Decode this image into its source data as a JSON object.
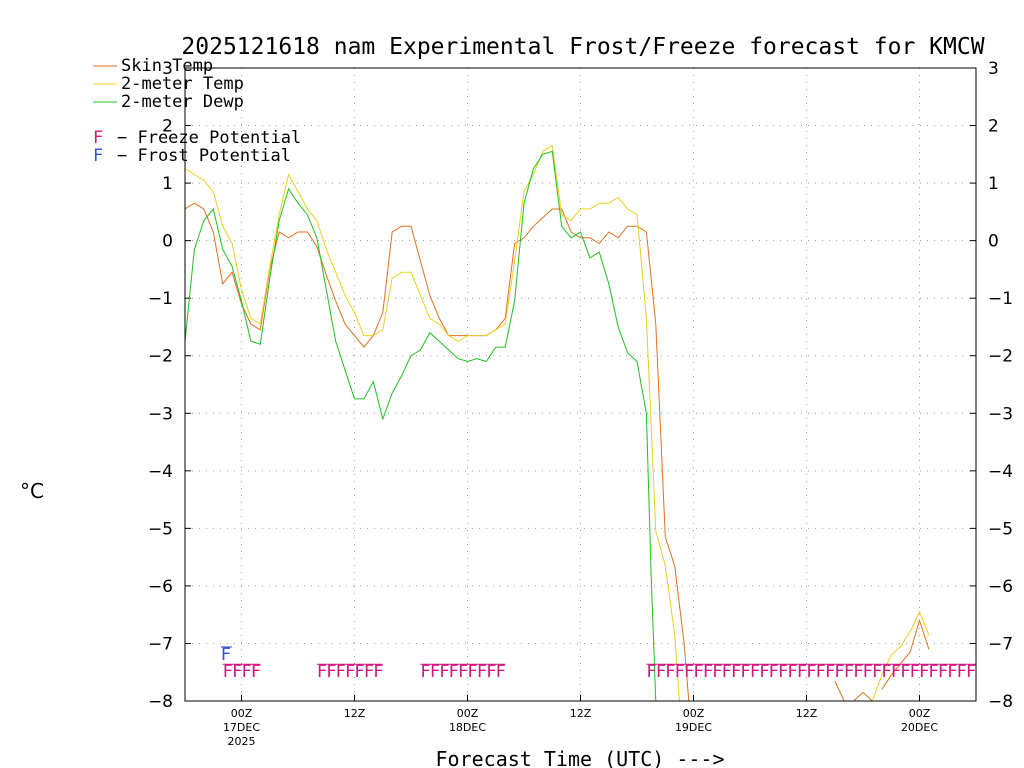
{
  "chart_data": {
    "type": "line",
    "title": "2025121618 nam Experimental Frost/Freeze forecast for KMCW",
    "xlabel": "Forecast Time (UTC) --->",
    "ylabel": "°C",
    "ylim": [
      -8,
      3
    ],
    "yticks": [
      3,
      2,
      1,
      0,
      -1,
      -2,
      -3,
      -4,
      -5,
      -6,
      -7,
      -8
    ],
    "yticklabels": [
      "3",
      "2",
      "1",
      "0",
      "−1",
      "−2",
      "−3",
      "−4",
      "−5",
      "−6",
      "−7",
      "−8"
    ],
    "xlim_hours": [
      0,
      84
    ],
    "xticks": [
      {
        "hour": 6,
        "label": "00Z",
        "sub1": "17DEC",
        "sub2": "2025"
      },
      {
        "hour": 18,
        "label": "12Z",
        "sub1": "",
        "sub2": ""
      },
      {
        "hour": 30,
        "label": "00Z",
        "sub1": "18DEC",
        "sub2": ""
      },
      {
        "hour": 42,
        "label": "12Z",
        "sub1": "",
        "sub2": ""
      },
      {
        "hour": 54,
        "label": "00Z",
        "sub1": "19DEC",
        "sub2": ""
      },
      {
        "hour": 66,
        "label": "12Z",
        "sub1": "",
        "sub2": ""
      },
      {
        "hour": 78,
        "label": "00Z",
        "sub1": "20DEC",
        "sub2": ""
      }
    ],
    "series": [
      {
        "name": "Skin Temp",
        "color": "#e07020",
        "points": [
          [
            0,
            0.55
          ],
          [
            1,
            0.65
          ],
          [
            2,
            0.55
          ],
          [
            3,
            0.15
          ],
          [
            4,
            -0.75
          ],
          [
            5,
            -0.55
          ],
          [
            6,
            -1.1
          ],
          [
            7,
            -1.45
          ],
          [
            8,
            -1.55
          ],
          [
            9,
            -0.5
          ],
          [
            10,
            0.15
          ],
          [
            11,
            0.05
          ],
          [
            12,
            0.15
          ],
          [
            13,
            0.15
          ],
          [
            14,
            -0.1
          ],
          [
            15,
            -0.6
          ],
          [
            16,
            -1.05
          ],
          [
            17,
            -1.45
          ],
          [
            18,
            -1.65
          ],
          [
            19,
            -1.85
          ],
          [
            20,
            -1.65
          ],
          [
            21,
            -1.25
          ],
          [
            22,
            0.15
          ],
          [
            23,
            0.25
          ],
          [
            24,
            0.25
          ],
          [
            25,
            -0.35
          ],
          [
            26,
            -0.95
          ],
          [
            27,
            -1.35
          ],
          [
            28,
            -1.65
          ],
          [
            29,
            -1.65
          ],
          [
            30,
            -1.65
          ],
          [
            31,
            -1.65
          ],
          [
            32,
            -1.65
          ],
          [
            33,
            -1.55
          ],
          [
            34,
            -1.35
          ],
          [
            35,
            -0.05
          ],
          [
            36,
            0.05
          ],
          [
            37,
            0.25
          ],
          [
            38,
            0.4
          ],
          [
            39,
            0.55
          ],
          [
            40,
            0.55
          ],
          [
            41,
            0.15
          ],
          [
            42,
            0.05
          ],
          [
            43,
            0.05
          ],
          [
            44,
            -0.05
          ],
          [
            45,
            0.15
          ],
          [
            46,
            0.05
          ],
          [
            47,
            0.25
          ],
          [
            48,
            0.25
          ],
          [
            49,
            0.15
          ],
          [
            50,
            -1.45
          ],
          [
            51,
            -5.15
          ],
          [
            52,
            -5.65
          ],
          [
            53,
            -7.0
          ],
          [
            53.5,
            -8
          ]
        ]
      },
      {
        "name": "2-meter Temp",
        "color": "#e8d020",
        "points": [
          [
            0,
            1.25
          ],
          [
            1,
            1.15
          ],
          [
            2,
            1.05
          ],
          [
            3,
            0.85
          ],
          [
            4,
            0.25
          ],
          [
            5,
            -0.05
          ],
          [
            6,
            -0.85
          ],
          [
            7,
            -1.35
          ],
          [
            8,
            -1.45
          ],
          [
            9,
            -0.45
          ],
          [
            10,
            0.45
          ],
          [
            11,
            1.15
          ],
          [
            12,
            0.85
          ],
          [
            13,
            0.55
          ],
          [
            14,
            0.35
          ],
          [
            15,
            -0.15
          ],
          [
            16,
            -0.55
          ],
          [
            17,
            -0.95
          ],
          [
            18,
            -1.25
          ],
          [
            19,
            -1.65
          ],
          [
            20,
            -1.65
          ],
          [
            21,
            -1.55
          ],
          [
            22,
            -0.65
          ],
          [
            23,
            -0.55
          ],
          [
            24,
            -0.55
          ],
          [
            25,
            -0.95
          ],
          [
            26,
            -1.35
          ],
          [
            27,
            -1.45
          ],
          [
            28,
            -1.65
          ],
          [
            29,
            -1.75
          ],
          [
            30,
            -1.65
          ],
          [
            31,
            -1.65
          ],
          [
            32,
            -1.65
          ],
          [
            33,
            -1.55
          ],
          [
            34,
            -1.45
          ],
          [
            35,
            -0.35
          ],
          [
            36,
            0.85
          ],
          [
            37,
            1.15
          ],
          [
            38,
            1.55
          ],
          [
            39,
            1.65
          ],
          [
            40,
            0.45
          ],
          [
            41,
            0.35
          ],
          [
            42,
            0.55
          ],
          [
            43,
            0.55
          ],
          [
            44,
            0.65
          ],
          [
            45,
            0.65
          ],
          [
            46,
            0.75
          ],
          [
            47,
            0.55
          ],
          [
            48,
            0.45
          ],
          [
            49,
            -1.35
          ],
          [
            50,
            -5.05
          ],
          [
            51,
            -5.65
          ],
          [
            52,
            -6.85
          ],
          [
            52.5,
            -8
          ],
          [
            73,
            -8
          ],
          [
            74,
            -7.55
          ],
          [
            75,
            -7.2
          ],
          [
            76,
            -7.05
          ],
          [
            77,
            -6.8
          ],
          [
            78,
            -6.45
          ],
          [
            79,
            -6.85
          ]
        ]
      },
      {
        "name": "2-meter Dewp",
        "color": "#20c020",
        "points": [
          [
            0,
            -1.75
          ],
          [
            1,
            -0.15
          ],
          [
            2,
            0.35
          ],
          [
            3,
            0.55
          ],
          [
            4,
            -0.15
          ],
          [
            5,
            -0.45
          ],
          [
            6,
            -1.05
          ],
          [
            7,
            -1.75
          ],
          [
            8,
            -1.8
          ],
          [
            9,
            -0.65
          ],
          [
            10,
            0.35
          ],
          [
            11,
            0.9
          ],
          [
            12,
            0.65
          ],
          [
            13,
            0.45
          ],
          [
            14,
            0.05
          ],
          [
            15,
            -0.85
          ],
          [
            16,
            -1.75
          ],
          [
            17,
            -2.25
          ],
          [
            18,
            -2.75
          ],
          [
            19,
            -2.75
          ],
          [
            20,
            -2.45
          ],
          [
            21,
            -3.1
          ],
          [
            22,
            -2.65
          ],
          [
            23,
            -2.35
          ],
          [
            24,
            -2.0
          ],
          [
            25,
            -1.9
          ],
          [
            26,
            -1.6
          ],
          [
            27,
            -1.75
          ],
          [
            28,
            -1.9
          ],
          [
            29,
            -2.05
          ],
          [
            30,
            -2.1
          ],
          [
            31,
            -2.05
          ],
          [
            32,
            -2.1
          ],
          [
            33,
            -1.85
          ],
          [
            34,
            -1.85
          ],
          [
            35,
            -1.05
          ],
          [
            36,
            0.65
          ],
          [
            37,
            1.25
          ],
          [
            38,
            1.5
          ],
          [
            39,
            1.55
          ],
          [
            40,
            0.25
          ],
          [
            41,
            0.05
          ],
          [
            42,
            0.15
          ],
          [
            43,
            -0.3
          ],
          [
            44,
            -0.2
          ],
          [
            45,
            -0.75
          ],
          [
            46,
            -1.5
          ],
          [
            47,
            -1.95
          ],
          [
            48,
            -2.1
          ],
          [
            49,
            -3.0
          ],
          [
            49.5,
            -5.8
          ],
          [
            50,
            -8
          ]
        ]
      }
    ],
    "partial_series": [
      {
        "name": "Skin Temp (late)",
        "color": "#e07020",
        "points": [
          [
            69,
            -7.65
          ],
          [
            70,
            -8
          ]
        ]
      },
      {
        "name": "Skin Temp (late2)",
        "color": "#e07020",
        "points": [
          [
            71,
            -8
          ],
          [
            72,
            -7.85
          ],
          [
            73,
            -8
          ]
        ]
      },
      {
        "name": "Skin Temp (late3)",
        "color": "#e07020",
        "points": [
          [
            74,
            -7.8
          ],
          [
            75,
            -7.55
          ],
          [
            76,
            -7.35
          ],
          [
            77,
            -7.15
          ],
          [
            78,
            -6.6
          ],
          [
            79,
            -7.1
          ]
        ]
      }
    ],
    "markers": {
      "freeze": {
        "color": "#d01880",
        "value": -7.5,
        "runs": [
          [
            4,
            8
          ],
          [
            14,
            21
          ],
          [
            25,
            34
          ],
          [
            49,
            84
          ]
        ],
        "glyph": "F"
      },
      "frost": {
        "color": "#3050d0",
        "value": -7.2,
        "runs": [
          [
            3.8,
            5
          ]
        ],
        "glyph": "F"
      }
    },
    "legend": [
      {
        "label": "Skin Temp",
        "color": "#e07020"
      },
      {
        "label": "2-meter Temp",
        "color": "#e8d020"
      },
      {
        "label": "2-meter Dewp",
        "color": "#20c020"
      }
    ],
    "legend2": [
      {
        "glyph": "F",
        "label": "Freeze Potential",
        "color": "#d01880"
      },
      {
        "glyph": "F",
        "label": "Frost Potential",
        "color": "#3050d0"
      }
    ],
    "grid": true
  }
}
